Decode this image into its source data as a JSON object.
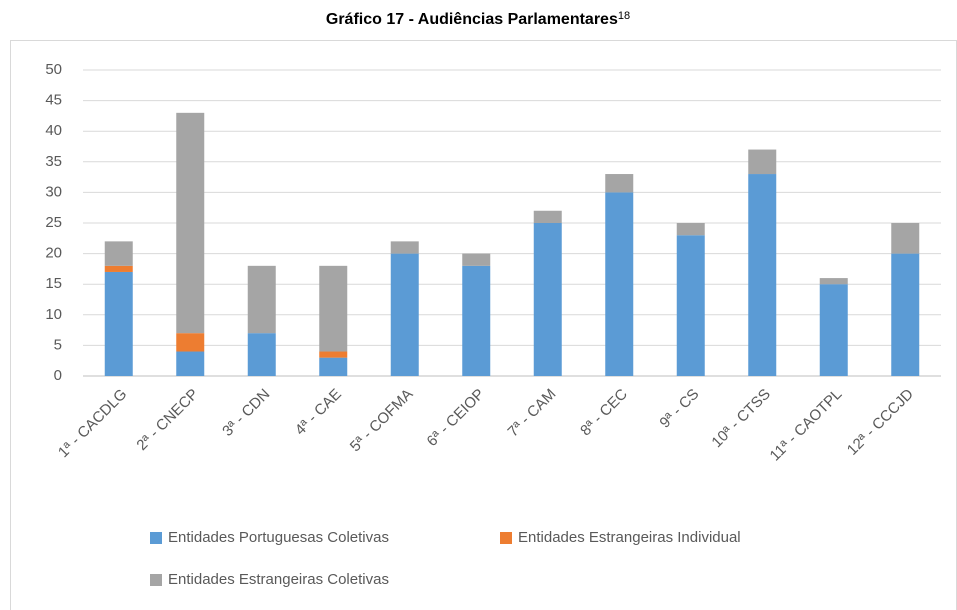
{
  "chart_data": {
    "type": "stacked_bar",
    "title": "Gráfico 17 - Audiências Parlamentares",
    "title_superscript": "18",
    "categories": [
      "1ª - CACDLG",
      "2ª - CNECP",
      "3ª - CDN",
      "4ª - CAE",
      "5ª - COFMA",
      "6ª - CEIOP",
      "7ª - CAM",
      "8ª - CEC",
      "9ª - CS",
      "10ª - CTSS",
      "11ª - CAOTPL",
      "12ª - CCCJD"
    ],
    "series": [
      {
        "name": "Entidades Portuguesas Coletivas",
        "color": "#5b9bd5",
        "values": [
          17,
          4,
          7,
          3,
          20,
          18,
          25,
          30,
          23,
          33,
          15,
          20
        ]
      },
      {
        "name": "Entidades Estrangeiras Individual",
        "color": "#ed7d31",
        "values": [
          1,
          3,
          0,
          1,
          0,
          0,
          0,
          0,
          0,
          0,
          0,
          0
        ]
      },
      {
        "name": "Entidades Estrangeiras Coletivas",
        "color": "#a5a5a5",
        "values": [
          4,
          36,
          11,
          14,
          2,
          2,
          2,
          3,
          2,
          4,
          1,
          5
        ]
      }
    ],
    "ylim": [
      0,
      50
    ],
    "yticks": [
      0,
      5,
      10,
      15,
      20,
      25,
      30,
      35,
      40,
      45,
      50
    ],
    "grid": true,
    "legend": "bottom"
  }
}
